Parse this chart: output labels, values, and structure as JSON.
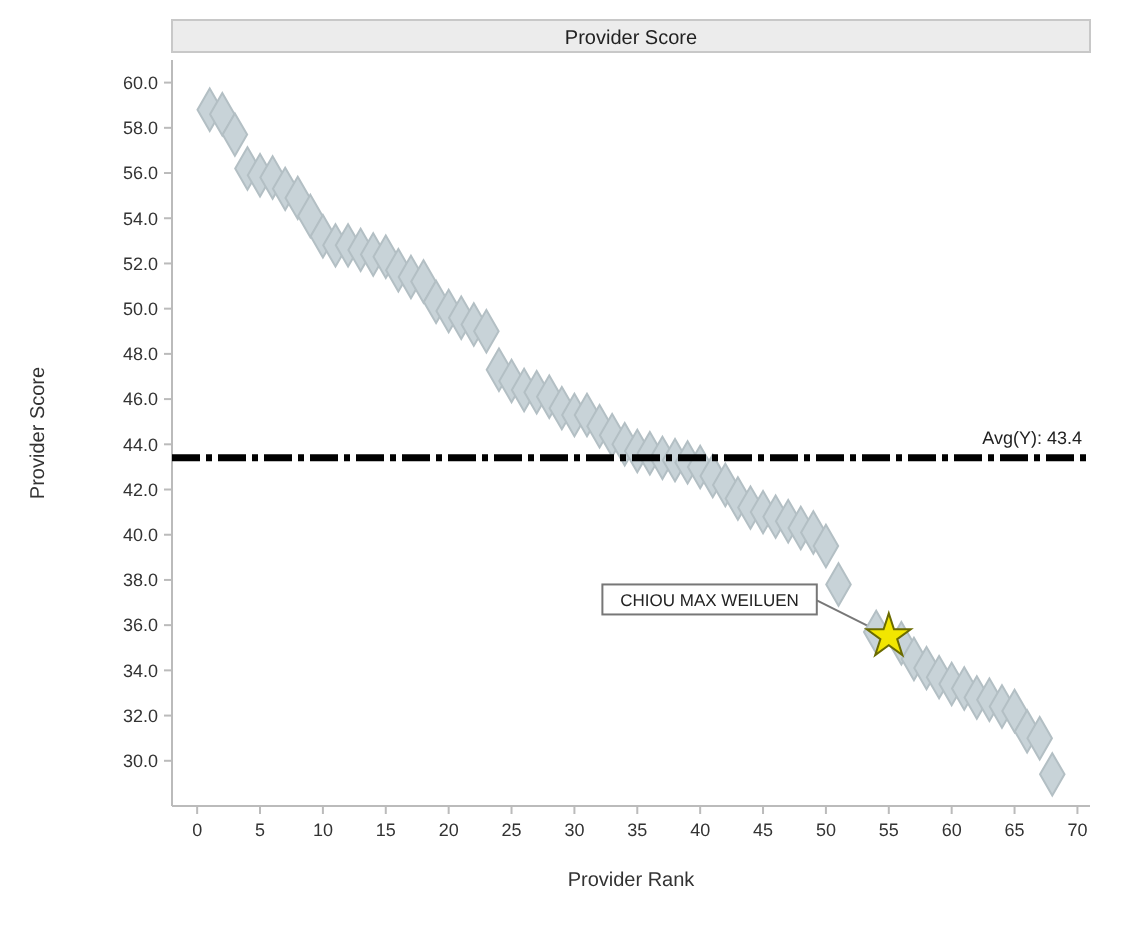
{
  "chart_data": {
    "type": "scatter",
    "title": "Provider Score",
    "xlabel": "Provider Rank",
    "ylabel": "Provider Score",
    "xlim": [
      -2,
      71
    ],
    "ylim": [
      28,
      61
    ],
    "xticks": [
      0,
      5,
      10,
      15,
      20,
      25,
      30,
      35,
      40,
      45,
      50,
      55,
      60,
      65,
      70
    ],
    "yticks": [
      {
        "value": 30,
        "label": "30.0"
      },
      {
        "value": 32,
        "label": "32.0"
      },
      {
        "value": 34,
        "label": "34.0"
      },
      {
        "value": 36,
        "label": "36.0"
      },
      {
        "value": 38,
        "label": "38.0"
      },
      {
        "value": 40,
        "label": "40.0"
      },
      {
        "value": 42,
        "label": "42.0"
      },
      {
        "value": 44,
        "label": "44.0"
      },
      {
        "value": 46,
        "label": "46.0"
      },
      {
        "value": 48,
        "label": "48.0"
      },
      {
        "value": 50,
        "label": "50.0"
      },
      {
        "value": 52,
        "label": "52.0"
      },
      {
        "value": 54,
        "label": "54.0"
      },
      {
        "value": 56,
        "label": "56.0"
      },
      {
        "value": 58,
        "label": "58.0"
      },
      {
        "value": 60,
        "label": "60.0"
      }
    ],
    "grid": false,
    "series": [
      {
        "color": "#c8d3d8",
        "marker": "diamond",
        "x": [
          1,
          2,
          3,
          4,
          5,
          6,
          7,
          8,
          9,
          10,
          11,
          12,
          13,
          14,
          15,
          16,
          17,
          18,
          19,
          20,
          21,
          22,
          23,
          24,
          25,
          26,
          27,
          28,
          29,
          30,
          31,
          32,
          33,
          34,
          35,
          36,
          37,
          38,
          39,
          40,
          41,
          42,
          43,
          44,
          45,
          46,
          47,
          48,
          49,
          50,
          51,
          54,
          56,
          57,
          58,
          59,
          60,
          61,
          62,
          63,
          64,
          65,
          66,
          67,
          68
        ],
        "values": [
          58.8,
          58.6,
          57.7,
          56.2,
          55.9,
          55.8,
          55.3,
          54.9,
          54.1,
          53.2,
          52.8,
          52.8,
          52.6,
          52.4,
          52.3,
          51.7,
          51.4,
          51.2,
          50.3,
          49.9,
          49.6,
          49.3,
          49.0,
          47.3,
          46.8,
          46.4,
          46.3,
          46.1,
          45.6,
          45.3,
          45.3,
          44.8,
          44.4,
          44.0,
          43.7,
          43.6,
          43.4,
          43.3,
          43.2,
          43.0,
          42.6,
          42.2,
          41.6,
          41.2,
          41.0,
          40.8,
          40.6,
          40.3,
          40.1,
          39.5,
          37.8,
          35.7,
          35.2,
          34.5,
          34.1,
          33.7,
          33.4,
          33.2,
          32.8,
          32.7,
          32.4,
          32.2,
          31.3,
          31.0,
          29.4
        ]
      },
      {
        "color": "#f2e600",
        "marker": "star",
        "x": [
          55
        ],
        "values": [
          35.5
        ]
      }
    ],
    "ref_lines": [
      {
        "axis": "y",
        "value": 43.4,
        "label": "Avg(Y): 43.4",
        "color": "#000000",
        "line_style": "dashed"
      }
    ],
    "annotations": [
      {
        "text": "CHIOU MAX WEILUEN",
        "x": 55,
        "y": 35.5
      }
    ]
  }
}
